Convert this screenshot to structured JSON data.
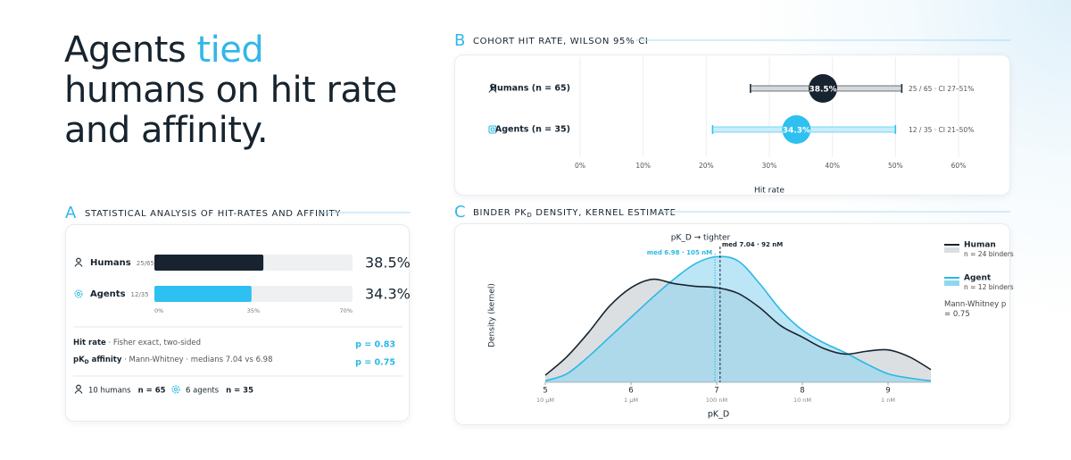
{
  "headline": {
    "lead": "Agents ",
    "highlight": "tied",
    "rest": " humans on hit rate and affinity."
  },
  "chart_data": [
    {
      "type": "hbar",
      "letter": "A",
      "title": "STATISTICAL ANALYSIS OF HIT-RATES AND AFFINITY",
      "categories": [
        "Humans",
        "Agents"
      ],
      "counts": [
        "25/65",
        "12/35"
      ],
      "values": [
        38.5,
        34.3
      ],
      "value_labels": [
        "38.5%",
        "34.3%"
      ],
      "colors": [
        "#17242f",
        "#2ec0f0"
      ],
      "xlim": [
        0,
        70
      ],
      "xticks": [
        {
          "value": 0,
          "label": "0%"
        },
        {
          "value": 35,
          "label": "35%"
        },
        {
          "value": 70,
          "label": "70%"
        }
      ],
      "stats": [
        {
          "label": "Hit rate",
          "method": " · Fisher exact, two-sided",
          "p": "p = 0.83"
        },
        {
          "label": "pK",
          "label_sub": "D",
          "label_rest": " affinity",
          "method": " · Mann-Whitney · medians 7.04 vs 6.98",
          "p": "p = 0.75"
        }
      ],
      "footer": [
        {
          "text": "10 humans",
          "n": "n = 65"
        },
        {
          "text": "6 agents",
          "n": "n = 35"
        }
      ]
    },
    {
      "type": "interval",
      "letter": "B",
      "title": "COHORT HIT RATE, WILSON 95% CI",
      "categories": [
        "Humans (n = 65)",
        "Agents (n = 35)"
      ],
      "values": [
        38.5,
        34.3
      ],
      "value_labels": [
        "38.5%",
        "34.3%"
      ],
      "low": [
        27,
        21
      ],
      "high": [
        51,
        50
      ],
      "annotations": [
        "25 / 65 · CI 27–51%",
        "12 / 35 · CI 21–50%"
      ],
      "colors": [
        "#17242f",
        "#2ec0f0"
      ],
      "xlabel": "Hit rate",
      "xlim": [
        0,
        60
      ],
      "grid": true,
      "xticks": [
        {
          "value": 0,
          "label": "0%"
        },
        {
          "value": 10,
          "label": "10%"
        },
        {
          "value": 20,
          "label": "20%"
        },
        {
          "value": 30,
          "label": "30%"
        },
        {
          "value": 40,
          "label": "40%"
        },
        {
          "value": 50,
          "label": "50%"
        },
        {
          "value": 60,
          "label": "60%"
        }
      ]
    },
    {
      "type": "density",
      "letter": "C",
      "title": "BINDER PK",
      "title_sub": "D",
      "title_rest": " DENSITY, KERNEL ESTIMATE",
      "xlabel": "pK_D",
      "ylabel": "Density (kernel)",
      "annotation": "pK_D → tighter",
      "x": [
        5,
        5.25,
        5.5,
        5.75,
        6,
        6.25,
        6.5,
        6.75,
        7,
        7.25,
        7.5,
        7.75,
        8,
        8.25,
        8.5,
        8.75,
        9,
        9.25,
        9.5
      ],
      "xlim": [
        5,
        9.5
      ],
      "xticks": [
        5,
        6,
        7,
        8,
        9
      ],
      "xtick_units": [
        "10 µM",
        "1 µM",
        "100 nM",
        "10 nM",
        "1 nM"
      ],
      "ylim": [
        0,
        1
      ],
      "series": [
        {
          "name": "Human",
          "note": "n = 24 binders",
          "color": "#17242f",
          "fill": "#dcdfe1",
          "median": 7.04,
          "median_label": "med 7.04 · 92 nM",
          "values": [
            0.05,
            0.18,
            0.35,
            0.54,
            0.67,
            0.73,
            0.7,
            0.68,
            0.67,
            0.63,
            0.53,
            0.4,
            0.32,
            0.24,
            0.2,
            0.22,
            0.23,
            0.18,
            0.09
          ]
        },
        {
          "name": "Agent",
          "note": "n = 12 binders",
          "color": "#2ab8e6",
          "fill": "#8fd6f0",
          "median": 6.98,
          "median_label": "med 6.98 · 105 nM",
          "values": [
            0.01,
            0.06,
            0.18,
            0.32,
            0.46,
            0.6,
            0.73,
            0.84,
            0.89,
            0.86,
            0.7,
            0.51,
            0.37,
            0.28,
            0.21,
            0.13,
            0.06,
            0.03,
            0.01
          ]
        }
      ],
      "legend_note": "Mann-Whitney p = 0.75"
    }
  ]
}
